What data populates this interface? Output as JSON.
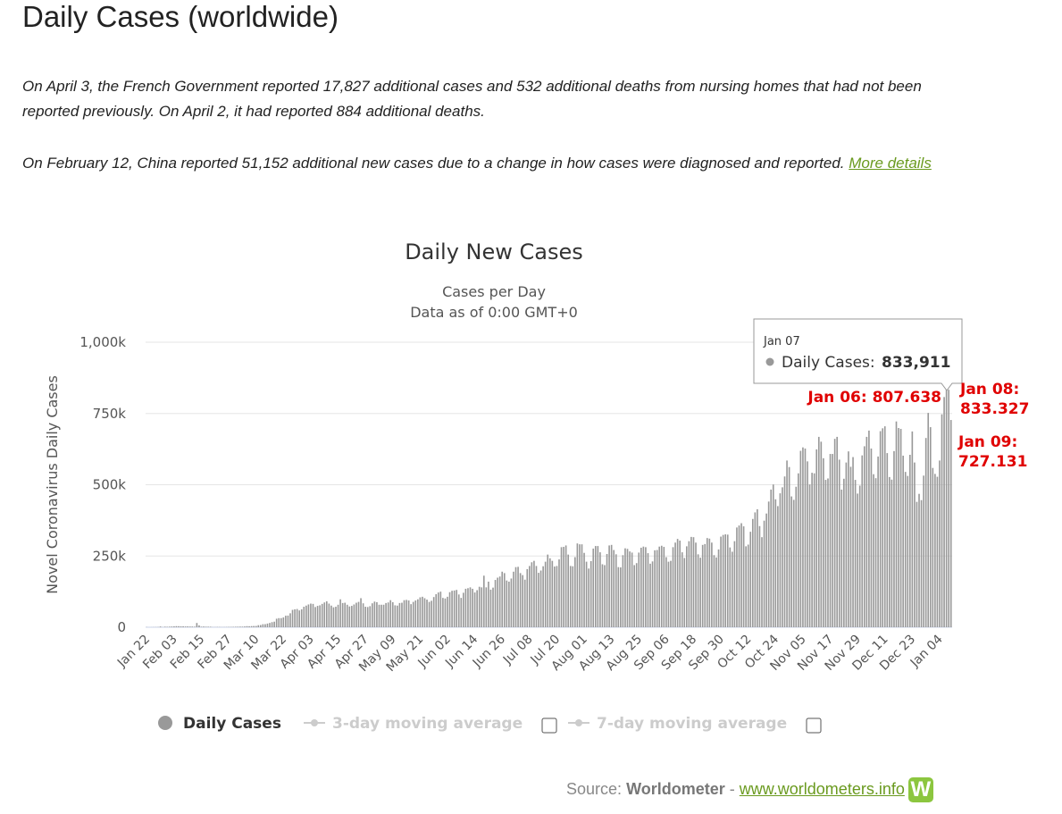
{
  "page_title": "Daily Cases (worldwide)",
  "notes": [
    "On April 3, the French Government reported 17,827 additional cases and 532 additional deaths from nursing homes that had not been reported previously. On April 2, it had reported 884 additional deaths.",
    "On February 12, China reported 51,152 additional new cases due to a change in how cases were diagnosed and reported."
  ],
  "more_link": "More details",
  "chart_data": {
    "type": "bar",
    "title": "Daily New Cases",
    "subtitle": [
      "Cases per Day",
      "Data as of 0:00 GMT+0"
    ],
    "y_label": "Novel Coronavirus Daily Cases",
    "ylim": [
      0,
      1000000
    ],
    "yticks": [
      0,
      {
        "value": 250000,
        "label": "250k"
      },
      {
        "value": 500000,
        "label": "500k"
      },
      {
        "value": 750000,
        "label": "750k"
      },
      {
        "value": 1000000,
        "label": "1,000k"
      }
    ],
    "grid": true,
    "categories": [
      "Jan 22",
      null,
      null,
      null,
      null,
      null,
      null,
      null,
      null,
      null,
      null,
      null,
      "Feb 03",
      null,
      null,
      null,
      null,
      null,
      null,
      null,
      null,
      null,
      null,
      null,
      "Feb 15",
      null,
      null,
      null,
      null,
      null,
      null,
      null,
      null,
      null,
      null,
      null,
      "Feb 27",
      null,
      null,
      null,
      null,
      null,
      null,
      null,
      null,
      null,
      null,
      null,
      "Mar 10",
      null,
      null,
      null,
      null,
      null,
      null,
      null,
      null,
      null,
      null,
      null,
      "Mar 22",
      null,
      null,
      null,
      null,
      null,
      null,
      null,
      null,
      null,
      null,
      null,
      "Apr 03",
      null,
      null,
      null,
      null,
      null,
      null,
      null,
      null,
      null,
      null,
      null,
      "Apr 15",
      null,
      null,
      null,
      null,
      null,
      null,
      null,
      null,
      null,
      null,
      null,
      "Apr 27",
      null,
      null,
      null,
      null,
      null,
      null,
      null,
      null,
      null,
      null,
      null,
      "May 09",
      null,
      null,
      null,
      null,
      null,
      null,
      null,
      null,
      null,
      null,
      null,
      "May 21",
      null,
      null,
      null,
      null,
      null,
      null,
      null,
      null,
      null,
      null,
      null,
      "Jun 02",
      null,
      null,
      null,
      null,
      null,
      null,
      null,
      null,
      null,
      null,
      null,
      "Jun 14",
      null,
      null,
      null,
      null,
      null,
      null,
      null,
      null,
      null,
      null,
      null,
      "Jun 26",
      null,
      null,
      null,
      null,
      null,
      null,
      null,
      null,
      null,
      null,
      null,
      "Jul 08",
      null,
      null,
      null,
      null,
      null,
      null,
      null,
      null,
      null,
      null,
      null,
      "Jul 20",
      null,
      null,
      null,
      null,
      null,
      null,
      null,
      null,
      null,
      null,
      null,
      "Aug 01",
      null,
      null,
      null,
      null,
      null,
      null,
      null,
      null,
      null,
      null,
      null,
      "Aug 13",
      null,
      null,
      null,
      null,
      null,
      null,
      null,
      null,
      null,
      null,
      null,
      "Aug 25",
      null,
      null,
      null,
      null,
      null,
      null,
      null,
      null,
      null,
      null,
      null,
      "Sep 06",
      null,
      null,
      null,
      null,
      null,
      null,
      null,
      null,
      null,
      null,
      null,
      "Sep 18",
      null,
      null,
      null,
      null,
      null,
      null,
      null,
      null,
      null,
      null,
      null,
      "Sep 30",
      null,
      null,
      null,
      null,
      null,
      null,
      null,
      null,
      null,
      null,
      null,
      "Oct 12",
      null,
      null,
      null,
      null,
      null,
      null,
      null,
      null,
      null,
      null,
      null,
      "Oct 24",
      null,
      null,
      null,
      null,
      null,
      null,
      null,
      null,
      null,
      null,
      null,
      "Nov 05",
      null,
      null,
      null,
      null,
      null,
      null,
      null,
      null,
      null,
      null,
      null,
      "Nov 17",
      null,
      null,
      null,
      null,
      null,
      null,
      null,
      null,
      null,
      null,
      null,
      "Nov 29",
      null,
      null,
      null,
      null,
      null,
      null,
      null,
      null,
      null,
      null,
      null,
      "Dec 11",
      null,
      null,
      null,
      null,
      null,
      null,
      null,
      null,
      null,
      null,
      null,
      "Dec 23",
      null,
      null,
      null,
      null,
      null,
      null,
      null,
      null,
      null,
      null,
      null,
      "Jan 04",
      null,
      null,
      null,
      null,
      null
    ],
    "series": [
      {
        "name": "Daily Cases",
        "color": "#999999",
        "values": [
          580,
          94,
          277,
          486,
          669,
          802,
          2632,
          578,
          2054,
          1661,
          2100,
          2600,
          3200,
          3900,
          3700,
          3200,
          3400,
          2700,
          3000,
          2600,
          2500,
          2000,
          15100,
          6500,
          2100,
          2600,
          2000,
          1900,
          1800,
          600,
          600,
          1000,
          900,
          600,
          700,
          900,
          1200,
          1300,
          1500,
          1800,
          2000,
          2300,
          2200,
          2800,
          3900,
          3600,
          4000,
          4400,
          4600,
          7200,
          7800,
          10700,
          10800,
          13000,
          15200,
          17900,
          19600,
          30000,
          32000,
          32000,
          34500,
          40500,
          41000,
          49000,
          61000,
          63000,
          64000,
          59000,
          63000,
          72000,
          76000,
          80000,
          83000,
          82000,
          71000,
          75000,
          77000,
          82000,
          87000,
          91000,
          83000,
          76000,
          70000,
          72000,
          79000,
          98000,
          85000,
          86000,
          79000,
          73000,
          75000,
          80000,
          86000,
          89000,
          102000,
          84000,
          72000,
          71000,
          74000,
          84000,
          90000,
          88000,
          79000,
          79000,
          79000,
          85000,
          87000,
          95000,
          88000,
          77000,
          76000,
          85000,
          86000,
          95000,
          96000,
          94000,
          81000,
          89000,
          94000,
          98000,
          105000,
          107000,
          102000,
          97000,
          89000,
          93000,
          106000,
          116000,
          122000,
          125000,
          103000,
          101000,
          107000,
          123000,
          128000,
          129000,
          131000,
          115000,
          103000,
          121000,
          135000,
          137000,
          140000,
          135000,
          122000,
          130000,
          142000,
          140000,
          181000,
          140000,
          160000,
          132000,
          139000,
          166000,
          174000,
          178000,
          195000,
          190000,
          164000,
          160000,
          171000,
          195000,
          211000,
          212000,
          190000,
          183000,
          167000,
          204000,
          215000,
          228000,
          233000,
          215000,
          191000,
          199000,
          214000,
          230000,
          255000,
          242000,
          233000,
          213000,
          215000,
          238000,
          281000,
          282000,
          287000,
          255000,
          215000,
          214000,
          246000,
          294000,
          291000,
          291000,
          261000,
          230000,
          206000,
          232000,
          276000,
          285000,
          285000,
          263000,
          221000,
          218000,
          257000,
          287000,
          289000,
          271000,
          256000,
          211000,
          210000,
          253000,
          277000,
          275000,
          266000,
          262000,
          218000,
          225000,
          262000,
          279000,
          283000,
          281000,
          260000,
          223000,
          231000,
          270000,
          271000,
          283000,
          286000,
          282000,
          246000,
          230000,
          233000,
          281000,
          297000,
          310000,
          304000,
          263000,
          243000,
          284000,
          302000,
          317000,
          316000,
          297000,
          256000,
          244000,
          289000,
          292000,
          313000,
          311000,
          297000,
          253000,
          245000,
          273000,
          318000,
          324000,
          326000,
          325000,
          280000,
          265000,
          302000,
          350000,
          357000,
          365000,
          354000,
          284000,
          290000,
          335000,
          380000,
          403000,
          414000,
          355000,
          316000,
          374000,
          399000,
          441000,
          483000,
          501000,
          449000,
          425000,
          470000,
          491000,
          529000,
          585000,
          562000,
          459000,
          447000,
          493000,
          540000,
          619000,
          631000,
          627000,
          582000,
          501000,
          542000,
          540000,
          624000,
          668000,
          651000,
          593000,
          517000,
          522000,
          608000,
          608000,
          661000,
          668000,
          588000,
          483000,
          521000,
          578000,
          617000,
          563000,
          597000,
          517000,
          469000,
          497000,
          603000,
          635000,
          668000,
          690000,
          627000,
          537000,
          523000,
          599000,
          688000,
          698000,
          705000,
          611000,
          527000,
          518000,
          618000,
          722000,
          699000,
          696000,
          602000,
          545000,
          531000,
          605000,
          687000,
          578000,
          440000,
          468000,
          446000,
          532000,
          664000,
          752000,
          702000,
          559000,
          538000,
          528000,
          585000,
          747000,
          807638,
          833911,
          833327,
          727131
        ]
      }
    ],
    "inactive_series": [
      "3-day moving average",
      "7-day moving average"
    ],
    "tooltip": {
      "date": "Jan 07",
      "label": "Daily Cases:",
      "value": 833911,
      "value_label": "833,911"
    },
    "annotations": [
      {
        "lines": [
          "Jan 06: 807.638"
        ]
      },
      {
        "lines": [
          "Jan 08:",
          "833.327"
        ]
      },
      {
        "lines": [
          "Jan 09:",
          "727.131"
        ]
      }
    ]
  },
  "source": {
    "prefix": "Source:",
    "name": "Worldometer",
    "separator": "-",
    "link": "www.worldometers.info",
    "logo": "W"
  }
}
